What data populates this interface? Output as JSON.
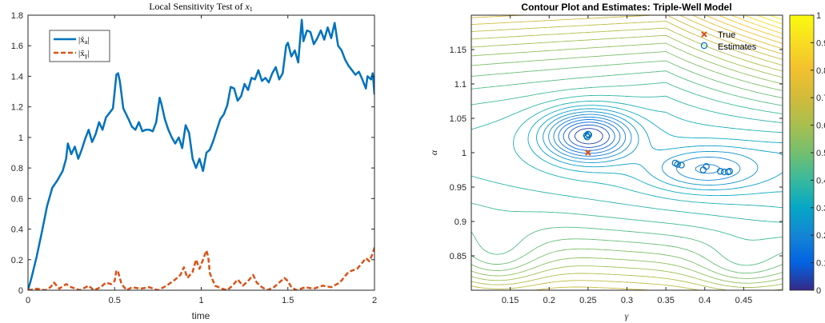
{
  "chart_data": [
    {
      "type": "line",
      "title": "Local Sensitivity Test of x₁",
      "title_prefix": "Local Sensitivity Test of ",
      "title_var": "x",
      "title_sub": "1",
      "xlabel": "time",
      "ylabel": "",
      "xlim": [
        0,
        2
      ],
      "ylim": [
        0,
        1.8
      ],
      "xticks": [
        "0",
        "0.5",
        "1",
        "1.5",
        "2"
      ],
      "yticks": [
        "0",
        "0.2",
        "0.4",
        "0.6",
        "0.8",
        "1",
        "1.2",
        "1.4",
        "1.6",
        "1.8"
      ],
      "grid": false,
      "legend_position": "top-left",
      "series": [
        {
          "name": "|x̃_a|",
          "legend_text": "|x̃",
          "legend_sub": "a",
          "color": "#0072bd",
          "style": "solid",
          "points": [
            [
              0,
              0
            ],
            [
              0.02,
              0.08
            ],
            [
              0.05,
              0.22
            ],
            [
              0.08,
              0.38
            ],
            [
              0.11,
              0.55
            ],
            [
              0.14,
              0.67
            ],
            [
              0.17,
              0.72
            ],
            [
              0.2,
              0.78
            ],
            [
              0.22,
              0.86
            ],
            [
              0.23,
              0.96
            ],
            [
              0.25,
              0.89
            ],
            [
              0.27,
              0.94
            ],
            [
              0.29,
              0.86
            ],
            [
              0.31,
              0.92
            ],
            [
              0.33,
              0.99
            ],
            [
              0.35,
              1.05
            ],
            [
              0.37,
              0.97
            ],
            [
              0.39,
              1.02
            ],
            [
              0.41,
              1.1
            ],
            [
              0.43,
              1.05
            ],
            [
              0.45,
              1.13
            ],
            [
              0.47,
              1.16
            ],
            [
              0.49,
              1.19
            ],
            [
              0.5,
              1.3
            ],
            [
              0.51,
              1.41
            ],
            [
              0.52,
              1.42
            ],
            [
              0.53,
              1.37
            ],
            [
              0.55,
              1.19
            ],
            [
              0.58,
              1.12
            ],
            [
              0.6,
              1.07
            ],
            [
              0.62,
              1.05
            ],
            [
              0.64,
              1.1
            ],
            [
              0.66,
              1.04
            ],
            [
              0.68,
              1.05
            ],
            [
              0.7,
              1.05
            ],
            [
              0.72,
              1.04
            ],
            [
              0.74,
              1.1
            ],
            [
              0.76,
              1.26
            ],
            [
              0.77,
              1.22
            ],
            [
              0.79,
              1.12
            ],
            [
              0.81,
              1.05
            ],
            [
              0.83,
              1.0
            ],
            [
              0.85,
              0.96
            ],
            [
              0.87,
              1.0
            ],
            [
              0.89,
              0.93
            ],
            [
              0.91,
              1.08
            ],
            [
              0.93,
              1.03
            ],
            [
              0.95,
              0.86
            ],
            [
              0.97,
              0.8
            ],
            [
              0.99,
              0.86
            ],
            [
              1.01,
              0.78
            ],
            [
              1.03,
              0.9
            ],
            [
              1.05,
              0.92
            ],
            [
              1.07,
              0.98
            ],
            [
              1.09,
              1.05
            ],
            [
              1.11,
              1.12
            ],
            [
              1.13,
              1.15
            ],
            [
              1.15,
              1.21
            ],
            [
              1.17,
              1.33
            ],
            [
              1.19,
              1.32
            ],
            [
              1.21,
              1.24
            ],
            [
              1.23,
              1.27
            ],
            [
              1.25,
              1.35
            ],
            [
              1.27,
              1.31
            ],
            [
              1.29,
              1.39
            ],
            [
              1.31,
              1.38
            ],
            [
              1.33,
              1.44
            ],
            [
              1.35,
              1.37
            ],
            [
              1.37,
              1.39
            ],
            [
              1.39,
              1.36
            ],
            [
              1.41,
              1.42
            ],
            [
              1.43,
              1.46
            ],
            [
              1.45,
              1.38
            ],
            [
              1.47,
              1.42
            ],
            [
              1.49,
              1.6
            ],
            [
              1.5,
              1.62
            ],
            [
              1.52,
              1.53
            ],
            [
              1.54,
              1.57
            ],
            [
              1.56,
              1.49
            ],
            [
              1.57,
              1.63
            ],
            [
              1.58,
              1.77
            ],
            [
              1.59,
              1.63
            ],
            [
              1.61,
              1.7
            ],
            [
              1.63,
              1.69
            ],
            [
              1.65,
              1.61
            ],
            [
              1.67,
              1.65
            ],
            [
              1.69,
              1.7
            ],
            [
              1.71,
              1.64
            ],
            [
              1.73,
              1.72
            ],
            [
              1.75,
              1.65
            ],
            [
              1.77,
              1.75
            ],
            [
              1.79,
              1.6
            ],
            [
              1.81,
              1.57
            ],
            [
              1.83,
              1.51
            ],
            [
              1.85,
              1.47
            ],
            [
              1.87,
              1.44
            ],
            [
              1.89,
              1.41
            ],
            [
              1.91,
              1.43
            ],
            [
              1.93,
              1.38
            ],
            [
              1.95,
              1.32
            ],
            [
              1.96,
              1.4
            ],
            [
              1.98,
              1.38
            ],
            [
              1.99,
              1.42
            ],
            [
              2.0,
              1.28
            ]
          ]
        },
        {
          "name": "|x̃_γ|",
          "legend_text": "|x̃",
          "legend_sub": "γ",
          "color": "#d95319",
          "style": "dashed",
          "points": [
            [
              0,
              0
            ],
            [
              0.05,
              0.01
            ],
            [
              0.1,
              0.0
            ],
            [
              0.13,
              0.02
            ],
            [
              0.15,
              0.05
            ],
            [
              0.18,
              0.01
            ],
            [
              0.22,
              0.04
            ],
            [
              0.25,
              0.02
            ],
            [
              0.3,
              0.0
            ],
            [
              0.35,
              0.03
            ],
            [
              0.38,
              0.0
            ],
            [
              0.42,
              0.02
            ],
            [
              0.45,
              0.05
            ],
            [
              0.48,
              0.04
            ],
            [
              0.5,
              0.06
            ],
            [
              0.51,
              0.13
            ],
            [
              0.52,
              0.12
            ],
            [
              0.54,
              0.04
            ],
            [
              0.57,
              0.0
            ],
            [
              0.6,
              0.02
            ],
            [
              0.65,
              0.01
            ],
            [
              0.7,
              0.02
            ],
            [
              0.75,
              0.0
            ],
            [
              0.8,
              0.03
            ],
            [
              0.85,
              0.07
            ],
            [
              0.88,
              0.1
            ],
            [
              0.9,
              0.15
            ],
            [
              0.92,
              0.08
            ],
            [
              0.95,
              0.12
            ],
            [
              0.97,
              0.2
            ],
            [
              0.99,
              0.14
            ],
            [
              1.01,
              0.2
            ],
            [
              1.03,
              0.26
            ],
            [
              1.04,
              0.22
            ],
            [
              1.05,
              0.11
            ],
            [
              1.08,
              0.03
            ],
            [
              1.12,
              0.01
            ],
            [
              1.15,
              0.0
            ],
            [
              1.18,
              0.03
            ],
            [
              1.21,
              0.07
            ],
            [
              1.24,
              0.03
            ],
            [
              1.27,
              0.06
            ],
            [
              1.3,
              0.1
            ],
            [
              1.32,
              0.05
            ],
            [
              1.35,
              0.02
            ],
            [
              1.38,
              0.0
            ],
            [
              1.42,
              0.02
            ],
            [
              1.45,
              0.05
            ],
            [
              1.48,
              0.08
            ],
            [
              1.5,
              0.06
            ],
            [
              1.52,
              0.02
            ],
            [
              1.55,
              0.0
            ],
            [
              1.6,
              0.02
            ],
            [
              1.65,
              0.01
            ],
            [
              1.7,
              0.03
            ],
            [
              1.75,
              0.02
            ],
            [
              1.8,
              0.05
            ],
            [
              1.85,
              0.12
            ],
            [
              1.9,
              0.14
            ],
            [
              1.93,
              0.18
            ],
            [
              1.95,
              0.21
            ],
            [
              1.97,
              0.19
            ],
            [
              1.99,
              0.24
            ],
            [
              2.0,
              0.28
            ]
          ]
        }
      ]
    },
    {
      "type": "contour",
      "title": "Contour Plot and Estimates: Triple-Well Model",
      "xlabel": "γ",
      "ylabel": "α",
      "xlim": [
        0.1,
        0.5
      ],
      "ylim": [
        0.8,
        1.2
      ],
      "xticks": [
        "0.15",
        "0.2",
        "0.25",
        "0.3",
        "0.35",
        "0.4",
        "0.45"
      ],
      "yticks": [
        "0.85",
        "0.9",
        "0.95",
        "1",
        "1.05",
        "1.1",
        "1.15"
      ],
      "grid": false,
      "legend_position": "top-right",
      "levels": 28,
      "colormap": "parula",
      "colorbar_ticks": [
        "0",
        "0.1",
        "0.2",
        "0.3",
        "0.4",
        "0.5",
        "0.6",
        "0.7",
        "0.8",
        "0.9",
        "1"
      ],
      "true_point": {
        "label": "True",
        "gamma": 0.25,
        "alpha": 1.0,
        "color": "#d95319",
        "marker": "x"
      },
      "estimates": {
        "label": "Estimates",
        "color": "#0072bd",
        "marker": "o",
        "points": [
          [
            0.248,
            1.025
          ],
          [
            0.25,
            1.027
          ],
          [
            0.249,
            1.023
          ],
          [
            0.251,
            1.026
          ],
          [
            0.362,
            0.985
          ],
          [
            0.365,
            0.983
          ],
          [
            0.37,
            0.982
          ],
          [
            0.398,
            0.975
          ],
          [
            0.402,
            0.98
          ],
          [
            0.42,
            0.973
          ],
          [
            0.425,
            0.972
          ],
          [
            0.43,
            0.972
          ],
          [
            0.432,
            0.973
          ]
        ]
      }
    }
  ]
}
